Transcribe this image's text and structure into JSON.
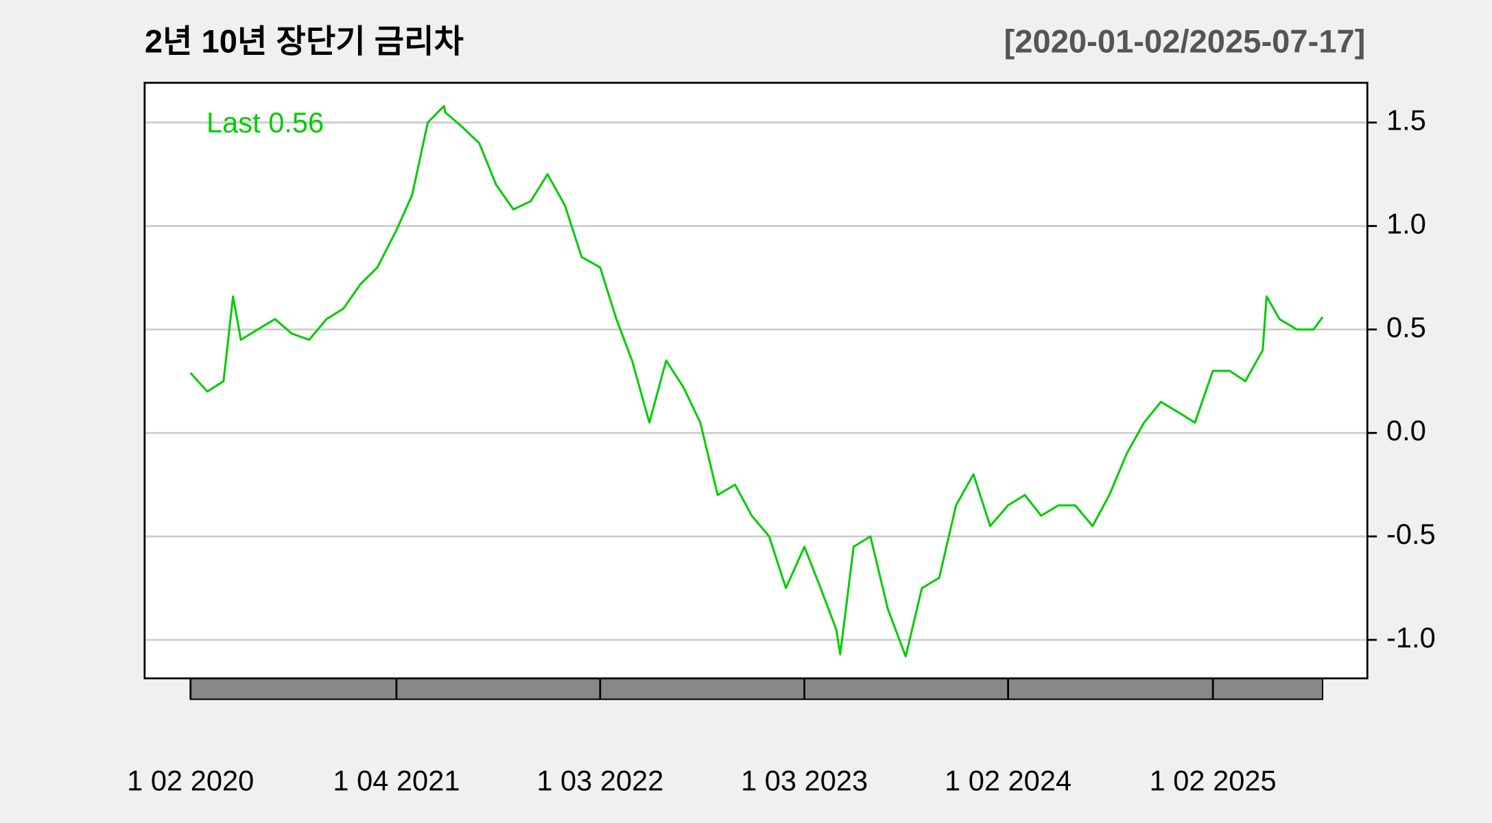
{
  "chart_data": {
    "type": "line",
    "title": "2년 10년 장단기 금리차",
    "subtitle": "[2020-01-02/2025-07-17]",
    "annotation": "Last 0.56",
    "grid": true,
    "x": [
      "2020-01-02",
      "2020-02-01",
      "2020-03-01",
      "2020-03-18",
      "2020-04-01",
      "2020-05-01",
      "2020-06-01",
      "2020-07-01",
      "2020-08-01",
      "2020-09-01",
      "2020-10-01",
      "2020-11-01",
      "2020-12-01",
      "2021-01-04",
      "2021-02-01",
      "2021-03-01",
      "2021-03-30",
      "2021-04-01",
      "2021-05-01",
      "2021-06-01",
      "2021-07-01",
      "2021-08-01",
      "2021-09-01",
      "2021-10-01",
      "2021-11-01",
      "2021-12-01",
      "2022-01-03",
      "2022-02-01",
      "2022-03-01",
      "2022-04-01",
      "2022-05-01",
      "2022-06-01",
      "2022-07-01",
      "2022-08-01",
      "2022-09-01",
      "2022-10-01",
      "2022-11-01",
      "2022-12-01",
      "2023-01-03",
      "2023-02-01",
      "2023-03-01",
      "2023-03-08",
      "2023-04-01",
      "2023-05-01",
      "2023-06-01",
      "2023-07-03",
      "2023-08-01",
      "2023-09-01",
      "2023-10-01",
      "2023-11-01",
      "2023-12-01",
      "2024-01-02",
      "2024-02-01",
      "2024-03-01",
      "2024-04-01",
      "2024-05-01",
      "2024-06-01",
      "2024-07-01",
      "2024-08-01",
      "2024-09-01",
      "2024-10-01",
      "2024-11-01",
      "2024-12-01",
      "2025-01-02",
      "2025-02-01",
      "2025-03-01",
      "2025-04-01",
      "2025-04-08",
      "2025-05-01",
      "2025-06-01",
      "2025-07-01",
      "2025-07-17"
    ],
    "series": [
      {
        "name": "2년 10년 장단기 금리차",
        "color": "#00cc00",
        "values": [
          0.29,
          0.2,
          0.25,
          0.66,
          0.45,
          0.5,
          0.55,
          0.48,
          0.45,
          0.55,
          0.6,
          0.72,
          0.8,
          0.98,
          1.15,
          1.5,
          1.58,
          1.55,
          1.48,
          1.4,
          1.2,
          1.08,
          1.12,
          1.25,
          1.1,
          0.85,
          0.8,
          0.55,
          0.35,
          0.05,
          0.35,
          0.22,
          0.05,
          -0.3,
          -0.25,
          -0.4,
          -0.5,
          -0.75,
          -0.55,
          -0.75,
          -0.95,
          -1.07,
          -0.55,
          -0.5,
          -0.85,
          -1.08,
          -0.75,
          -0.7,
          -0.35,
          -0.2,
          -0.45,
          -0.35,
          -0.3,
          -0.4,
          -0.35,
          -0.35,
          -0.45,
          -0.3,
          -0.1,
          0.05,
          0.15,
          0.1,
          0.05,
          0.3,
          0.3,
          0.25,
          0.4,
          0.66,
          0.55,
          0.5,
          0.5,
          0.56
        ]
      }
    ],
    "xlim": [
      "2019-10-12",
      "2025-10-05"
    ],
    "xticks": [
      {
        "value": "2020-01-02",
        "label": "1 02 2020"
      },
      {
        "value": "2021-01-04",
        "label": "1 04 2021"
      },
      {
        "value": "2022-01-03",
        "label": "1 03 2022"
      },
      {
        "value": "2023-01-03",
        "label": "1 03 2023"
      },
      {
        "value": "2024-01-02",
        "label": "1 02 2024"
      },
      {
        "value": "2025-01-02",
        "label": "1 02 2025"
      }
    ],
    "ylim": [
      -1.186,
      1.692
    ],
    "yticks": [
      1.5,
      {
        "value": 1,
        "label": "1.0"
      },
      0.5,
      {
        "value": 0,
        "label": "0.0"
      },
      -0.5,
      {
        "value": -1,
        "label": "-1.0"
      }
    ]
  }
}
